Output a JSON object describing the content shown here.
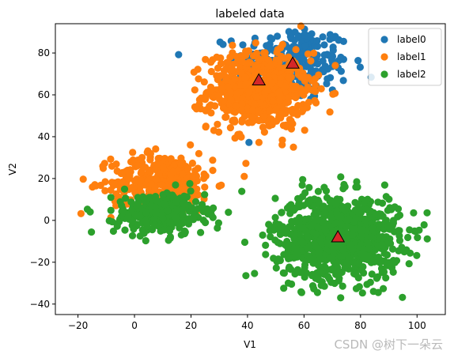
{
  "chart_data": {
    "type": "scatter",
    "title": "labeled data",
    "xlabel": "V1",
    "ylabel": "V2",
    "xlim": [
      -28,
      110
    ],
    "ylim": [
      -45,
      94
    ],
    "xticks": [
      -20,
      0,
      20,
      40,
      60,
      80,
      100
    ],
    "yticks": [
      -40,
      -20,
      0,
      20,
      40,
      60,
      80
    ],
    "grid": false,
    "legend_position": "top-right",
    "series": [
      {
        "name": "label0",
        "color": "#1f77b4",
        "clusters": [
          {
            "center": [
              56,
              75
            ],
            "spread": [
              10,
              9
            ],
            "count": 260
          }
        ]
      },
      {
        "name": "label1",
        "color": "#ff7f0e",
        "clusters": [
          {
            "center": [
              44,
              62
            ],
            "spread": [
              9,
              9
            ],
            "count": 650
          },
          {
            "center": [
              10,
              18
            ],
            "spread": [
              9,
              7
            ],
            "count": 380
          }
        ]
      },
      {
        "name": "label2",
        "color": "#2ca02c",
        "clusters": [
          {
            "center": [
              72,
              -8
            ],
            "spread": [
              11,
              10
            ],
            "count": 900
          },
          {
            "center": [
              9,
              3
            ],
            "spread": [
              8,
              5
            ],
            "count": 300
          }
        ]
      }
    ],
    "centroids": [
      {
        "series": "label0",
        "x": 56,
        "y": 75
      },
      {
        "series": "label1",
        "x": 44,
        "y": 67
      },
      {
        "series": "label2",
        "x": 72,
        "y": -8
      }
    ],
    "centroid_marker": {
      "shape": "triangle",
      "fill": "#d62728",
      "stroke": "#000000"
    }
  },
  "watermark": "CSDN @树下一朵云"
}
